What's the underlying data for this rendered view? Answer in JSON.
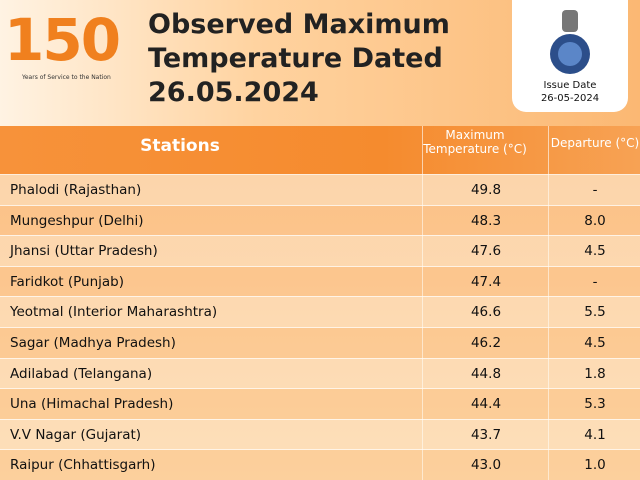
{
  "header": {
    "logo_number": "150",
    "logo_tagline": "Years of Service to the Nation",
    "title": "Observed Maximum Temperature Dated 26.05.2024",
    "issue_label": "Issue Date",
    "issue_date": "26-05-2024"
  },
  "table": {
    "columns": [
      "Stations",
      "Maximum Temperature (°C)",
      "Departure (°C)"
    ],
    "rows": [
      [
        "Phalodi (Rajasthan)",
        "49.8",
        "-"
      ],
      [
        "Mungeshpur (Delhi)",
        "48.3",
        "8.0"
      ],
      [
        "Jhansi (Uttar Pradesh)",
        "47.6",
        "4.5"
      ],
      [
        "Faridkot (Punjab)",
        "47.4",
        "-"
      ],
      [
        "Yeotmal (Interior Maharashtra)",
        "46.6",
        "5.5"
      ],
      [
        "Sagar (Madhya Pradesh)",
        "46.2",
        "4.5"
      ],
      [
        "Adilabad (Telangana)",
        "44.8",
        "1.8"
      ],
      [
        "Una (Himachal Pradesh)",
        "44.4",
        "5.3"
      ],
      [
        "V.V Nagar (Gujarat)",
        "43.7",
        "4.1"
      ],
      [
        "Raipur (Chhattisgarh)",
        "43.0",
        "1.0"
      ]
    ]
  }
}
